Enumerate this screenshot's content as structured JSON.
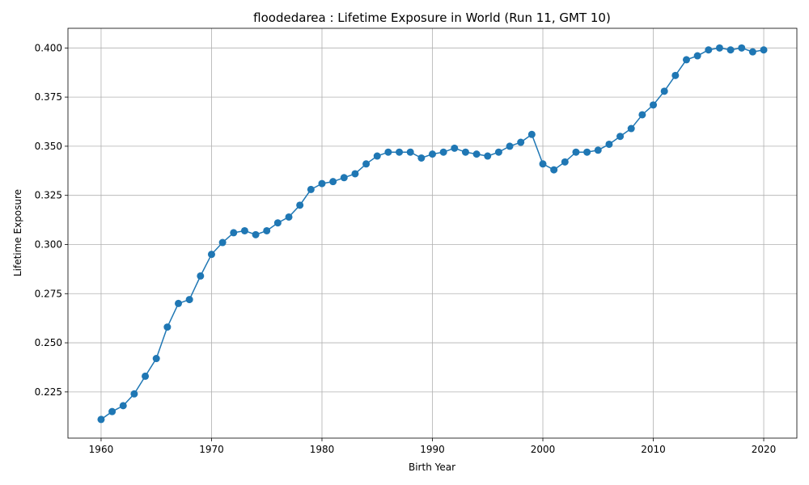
{
  "chart_data": {
    "type": "line",
    "title": "floodedarea : Lifetime Exposure in World (Run 11, GMT 10)",
    "xlabel": "Birth Year",
    "ylabel": "Lifetime Exposure",
    "xlim": [
      1957,
      2023
    ],
    "ylim": [
      0.2015,
      0.41
    ],
    "xticks": [
      1960,
      1970,
      1980,
      1990,
      2000,
      2010,
      2020
    ],
    "yticks": [
      0.225,
      0.25,
      0.275,
      0.3,
      0.325,
      0.35,
      0.375,
      0.4
    ],
    "ytick_labels": [
      "0.225",
      "0.250",
      "0.275",
      "0.300",
      "0.325",
      "0.350",
      "0.375",
      "0.400"
    ],
    "grid": true,
    "color": "#1f77b4",
    "marker": "circle",
    "series": [
      {
        "x": [
          1960,
          1961,
          1962,
          1963,
          1964,
          1965,
          1966,
          1967,
          1968,
          1969,
          1970,
          1971,
          1972,
          1973,
          1974,
          1975,
          1976,
          1977,
          1978,
          1979,
          1980,
          1981,
          1982,
          1983,
          1984,
          1985,
          1986,
          1987,
          1988,
          1989,
          1990,
          1991,
          1992,
          1993,
          1994,
          1995,
          1996,
          1997,
          1998,
          1999,
          2000,
          2001,
          2002,
          2003,
          2004,
          2005,
          2006,
          2007,
          2008,
          2009,
          2010,
          2011,
          2012,
          2013,
          2014,
          2015,
          2016,
          2017,
          2018,
          2019,
          2020
        ],
        "values": [
          0.211,
          0.215,
          0.218,
          0.224,
          0.233,
          0.242,
          0.258,
          0.27,
          0.272,
          0.284,
          0.295,
          0.301,
          0.306,
          0.307,
          0.305,
          0.307,
          0.311,
          0.314,
          0.32,
          0.328,
          0.331,
          0.332,
          0.334,
          0.336,
          0.341,
          0.345,
          0.347,
          0.347,
          0.347,
          0.344,
          0.346,
          0.347,
          0.349,
          0.347,
          0.346,
          0.345,
          0.347,
          0.35,
          0.352,
          0.356,
          0.341,
          0.338,
          0.342,
          0.347,
          0.347,
          0.348,
          0.351,
          0.355,
          0.359,
          0.366,
          0.371,
          0.378,
          0.386,
          0.394,
          0.396,
          0.399,
          0.4,
          0.399,
          0.4,
          0.398,
          0.399
        ]
      }
    ]
  }
}
